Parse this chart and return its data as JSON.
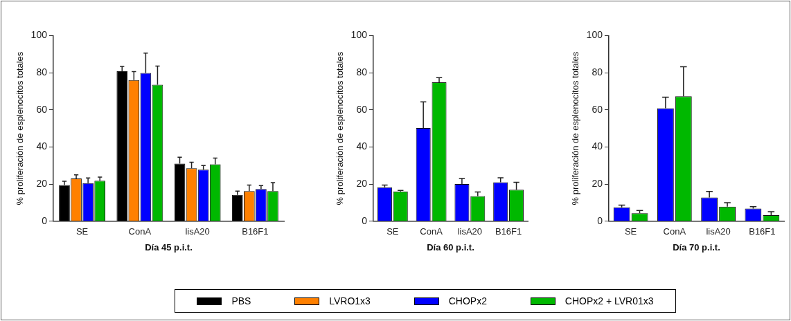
{
  "chart_data": [
    {
      "type": "bar",
      "xlabel": "Día 45 p.i.t.",
      "ylabel": "% proliferación de esplenocitos totales",
      "categories": [
        "SE",
        "ConA",
        "lisA20",
        "B16F1"
      ],
      "ylim": [
        0,
        100
      ],
      "yticks": [
        0,
        20,
        40,
        60,
        80,
        100
      ],
      "grid": false,
      "legend": "bottom",
      "series": [
        {
          "name": "PBS",
          "color": "#000000",
          "values": [
            19.5,
            80.8,
            31,
            14.2
          ],
          "errors": [
            [
              19.5,
              21.5
            ],
            [
              80.8,
              83.4
            ],
            [
              31,
              34.5
            ],
            [
              14.2,
              16.2
            ]
          ]
        },
        {
          "name": "LVRO1x3",
          "color": "#ff8000",
          "values": [
            23,
            76,
            28.5,
            16.2
          ],
          "errors": [
            [
              23,
              25
            ],
            [
              76,
              80.6
            ],
            [
              28.5,
              31.8
            ],
            [
              16.2,
              19.5
            ]
          ]
        },
        {
          "name": "CHOPx2",
          "color": "#0000ff",
          "values": [
            20.5,
            79.8,
            27.8,
            17.3
          ],
          "errors": [
            [
              20.5,
              23.3
            ],
            [
              79.8,
              90.6
            ],
            [
              27.8,
              30
            ],
            [
              17.3,
              19.2
            ]
          ]
        },
        {
          "name": "CHOPx2 + LVR01x3",
          "color": "#00b800",
          "values": [
            21.8,
            73.5,
            30.7,
            16.2
          ],
          "errors": [
            [
              21.8,
              23.8
            ],
            [
              73.5,
              83.6
            ],
            [
              30.7,
              34
            ],
            [
              16.2,
              20.8
            ]
          ]
        }
      ]
    },
    {
      "type": "bar",
      "xlabel": "Día 60 p.i.t.",
      "ylabel": "% proliferación de esplenocitos totales",
      "categories": [
        "SE",
        "ConA",
        "lisA20",
        "B16F1"
      ],
      "ylim": [
        0,
        100
      ],
      "yticks": [
        0,
        20,
        40,
        60,
        80,
        100
      ],
      "grid": false,
      "series": [
        {
          "color": "#0000ff",
          "values": [
            18.3,
            50.2,
            20,
            21
          ],
          "errors": [
            [
              18.3,
              19.5
            ],
            [
              50.2,
              64.3
            ],
            [
              20,
              23
            ],
            [
              21,
              23.4
            ]
          ]
        },
        {
          "color": "#00b800",
          "values": [
            16,
            74.8,
            13.5,
            17
          ],
          "errors": [
            [
              16,
              16.6
            ],
            [
              74.8,
              77.3
            ],
            [
              13.5,
              15.8
            ],
            [
              17,
              21
            ]
          ]
        }
      ]
    },
    {
      "type": "bar",
      "xlabel": "Día 70 p.i.t.",
      "ylabel": "% proliferación de esplenocitos totales",
      "categories": [
        "SE",
        "ConA",
        "lisA20",
        "B16F1"
      ],
      "ylim": [
        0,
        100
      ],
      "yticks": [
        0,
        20,
        40,
        60,
        80,
        100
      ],
      "grid": false,
      "series": [
        {
          "color": "#0000ff",
          "values": [
            7.5,
            60.8,
            12.8,
            6.8
          ],
          "errors": [
            [
              7.5,
              8.7
            ],
            [
              60.8,
              66.8
            ],
            [
              12.8,
              16
            ],
            [
              6.8,
              7.8
            ]
          ]
        },
        {
          "color": "#00b800",
          "values": [
            4.3,
            67.3,
            7.8,
            3.3
          ],
          "errors": [
            [
              4.3,
              5.8
            ],
            [
              67.3,
              83.2
            ],
            [
              7.8,
              10
            ],
            [
              3.3,
              5.1
            ]
          ]
        }
      ]
    }
  ]
}
